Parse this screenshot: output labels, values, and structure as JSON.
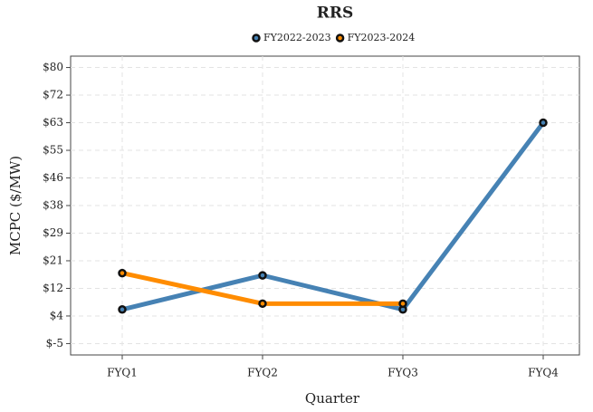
{
  "chart_data": {
    "type": "line",
    "title": "RRS",
    "x_label": "Quarter",
    "y_label": "MCPC ($/MW)",
    "categories": [
      "FYQ1",
      "FYQ2",
      "FYQ3",
      "FYQ4"
    ],
    "series": [
      {
        "name": "FY2022-2023",
        "color": "#4682b4",
        "values": [
          5.5,
          16,
          5.5,
          63
        ]
      },
      {
        "name": "FY2023-2024",
        "color": "#ff8c00",
        "values": [
          16.7,
          7.3,
          7.3,
          null
        ]
      }
    ],
    "ylim": [
      -8.5,
      83.5
    ],
    "yticks": [
      {
        "value": -5,
        "label": "$-5"
      },
      {
        "value": 3.5,
        "label": "$4"
      },
      {
        "value": 12,
        "label": "$12"
      },
      {
        "value": 20.5,
        "label": "$21"
      },
      {
        "value": 29,
        "label": "$29"
      },
      {
        "value": 37.5,
        "label": "$38"
      },
      {
        "value": 46,
        "label": "$46"
      },
      {
        "value": 54.5,
        "label": "$55"
      },
      {
        "value": 63,
        "label": "$63"
      },
      {
        "value": 71.5,
        "label": "$72"
      },
      {
        "value": 80,
        "label": "$80"
      }
    ],
    "grid": true,
    "legend": "top"
  }
}
